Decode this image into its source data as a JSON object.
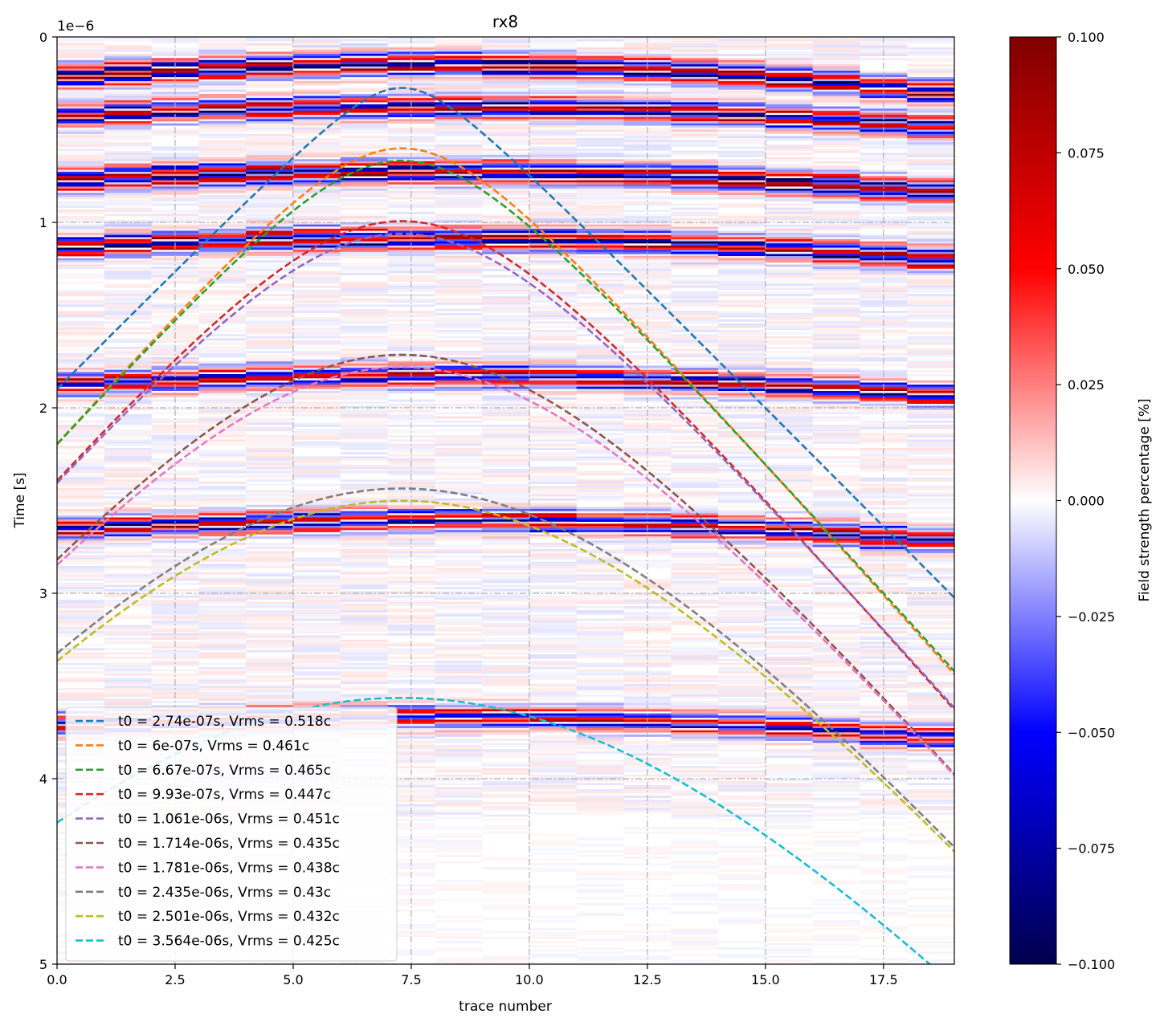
{
  "chart_data": {
    "type": "heatmap",
    "title": "rx8",
    "xlabel": "trace number",
    "ylabel": "Time [s]",
    "y_offset_text": "1e−6",
    "xlim": [
      0,
      19
    ],
    "ylim": [
      5,
      0
    ],
    "y_scale_factor": 1e-06,
    "x_ticks": [
      0.0,
      2.5,
      5.0,
      7.5,
      10.0,
      12.5,
      15.0,
      17.5
    ],
    "x_tick_labels": [
      "0.0",
      "2.5",
      "5.0",
      "7.5",
      "10.0",
      "12.5",
      "15.0",
      "17.5"
    ],
    "y_ticks": [
      0,
      1,
      2,
      3,
      4,
      5
    ],
    "y_tick_labels": [
      "0",
      "1",
      "2",
      "3",
      "4",
      "5"
    ],
    "grid": true,
    "grid_style": "dashdot",
    "colorbar": {
      "label": "Field strength percentage [%]",
      "range": [
        -0.1,
        0.1
      ],
      "colormap": "seismic",
      "ticks": [
        0.1,
        0.075,
        0.05,
        0.025,
        0.0,
        -0.025,
        -0.05,
        -0.075,
        -0.1
      ],
      "tick_labels": [
        "0.100",
        "0.075",
        "0.050",
        "0.025",
        "0.000",
        "−0.025",
        "−0.050",
        "−0.075",
        "−0.100"
      ],
      "colors": {
        "neg_end": "#00004c",
        "neg_mid": "#0000ff",
        "zero": "#ffffff",
        "pos_mid": "#ff0000",
        "pos_end": "#7f0000"
      }
    },
    "reflection_bands": [
      {
        "t0": 0.14,
        "amp": 1.0
      },
      {
        "t0": 0.37,
        "amp": 0.9
      },
      {
        "t0": 0.72,
        "amp": 1.0
      },
      {
        "t0": 1.08,
        "amp": 0.95
      },
      {
        "t0": 1.82,
        "amp": 0.85
      },
      {
        "t0": 2.6,
        "amp": 0.85
      },
      {
        "t0": 3.66,
        "amp": 0.75
      }
    ],
    "series": [
      {
        "name": "t0 = 2.74e-07s, Vrms = 0.518c",
        "color": "#1f77b4",
        "t0": 0.274,
        "vrms": 0.518,
        "apex": 7.3
      },
      {
        "name": "t0 = 6e-07s, Vrms = 0.461c",
        "color": "#ff7f0e",
        "t0": 0.6,
        "vrms": 0.461,
        "apex": 7.3
      },
      {
        "name": "t0 = 6.67e-07s, Vrms = 0.465c",
        "color": "#2ca02c",
        "t0": 0.667,
        "vrms": 0.465,
        "apex": 7.3
      },
      {
        "name": "t0 = 9.93e-07s, Vrms = 0.447c",
        "color": "#d62728",
        "t0": 0.993,
        "vrms": 0.447,
        "apex": 7.3
      },
      {
        "name": "t0 = 1.061e-06s, Vrms = 0.451c",
        "color": "#9467bd",
        "t0": 1.061,
        "vrms": 0.451,
        "apex": 7.3
      },
      {
        "name": "t0 = 1.714e-06s, Vrms = 0.435c",
        "color": "#8c564b",
        "t0": 1.714,
        "vrms": 0.435,
        "apex": 7.3
      },
      {
        "name": "t0 = 1.781e-06s, Vrms = 0.438c",
        "color": "#e377c2",
        "t0": 1.781,
        "vrms": 0.438,
        "apex": 7.3
      },
      {
        "name": "t0 = 2.435e-06s, Vrms = 0.43c",
        "color": "#7f7f7f",
        "t0": 2.435,
        "vrms": 0.43,
        "apex": 7.3
      },
      {
        "name": "t0 = 2.501e-06s, Vrms = 0.432c",
        "color": "#bcbd22",
        "t0": 2.501,
        "vrms": 0.432,
        "apex": 7.3
      },
      {
        "name": "t0 = 3.564e-06s, Vrms = 0.425c",
        "color": "#17becf",
        "t0": 3.564,
        "vrms": 0.425,
        "apex": 7.3
      }
    ],
    "legend_position": "lower-left"
  }
}
